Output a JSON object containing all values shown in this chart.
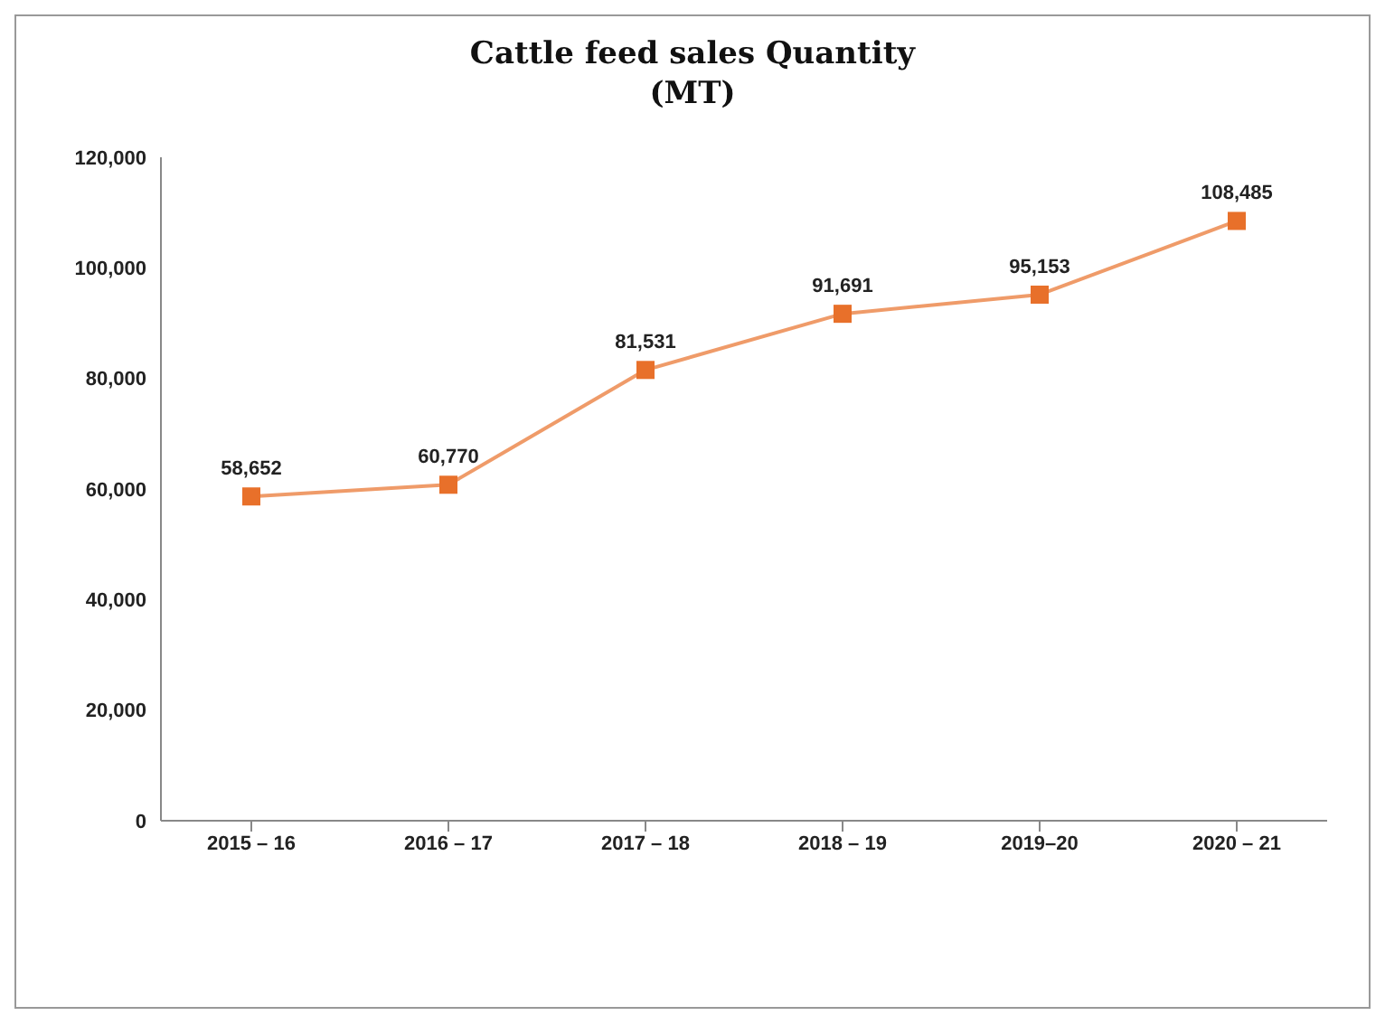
{
  "chart_data": {
    "type": "line",
    "title": "Cattle feed sales Quantity\n(MT)",
    "categories": [
      "2015 – 16",
      "2016 – 17",
      "2017 – 18",
      "2018 – 19",
      "2019–20",
      "2020 – 21"
    ],
    "series": [
      {
        "color": "#e8702a",
        "values": [
          58652,
          60770,
          81531,
          91691,
          95153,
          108485
        ],
        "value_labels": [
          "58,652",
          "60,770",
          "81,531",
          "91,691",
          "95,153",
          "108,485"
        ]
      }
    ],
    "ylim": [
      0,
      120000
    ],
    "yticks": [
      0,
      {
        "value": 20000,
        "label": "20,000"
      },
      {
        "value": 40000,
        "label": "40,000"
      },
      {
        "value": 60000,
        "label": "60,000"
      },
      {
        "value": 80000,
        "label": "80,000"
      },
      {
        "value": 100000,
        "label": "100,000"
      },
      {
        "value": 120000,
        "label": "120,000"
      }
    ],
    "grid": false,
    "legend": false,
    "marker": "square",
    "line_style": "solid"
  }
}
